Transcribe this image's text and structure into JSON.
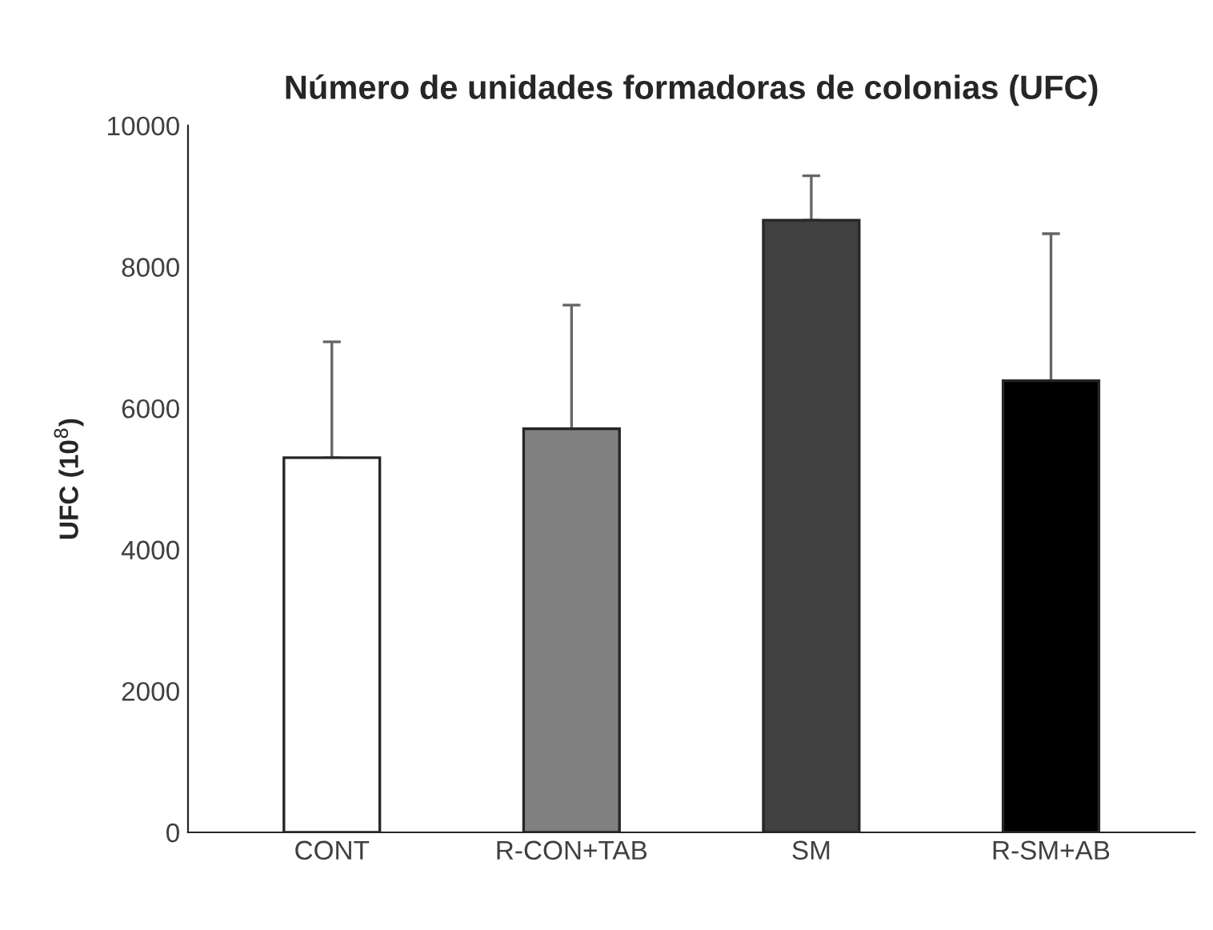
{
  "chart_data": {
    "type": "bar",
    "title": "Número de unidades formadoras de colonias (UFC)",
    "ylabel": "UFC (10$^{8}$)",
    "categories": [
      "CONT",
      "R-CON+TAB",
      "SM",
      "R-SM+AB"
    ],
    "values": [
      5300,
      5710,
      8660,
      6390
    ],
    "errors": [
      [
        5300,
        6940
      ],
      [
        5710,
        7460
      ],
      [
        8660,
        9290
      ],
      [
        6390,
        8470
      ]
    ],
    "colors": [
      "#ffffff",
      "#808080",
      "#404040",
      "#000000"
    ],
    "ylim": [
      0,
      10000
    ],
    "yticks": [
      0,
      2000,
      4000,
      6000,
      8000,
      10000
    ],
    "grid": false,
    "legend": false
  }
}
